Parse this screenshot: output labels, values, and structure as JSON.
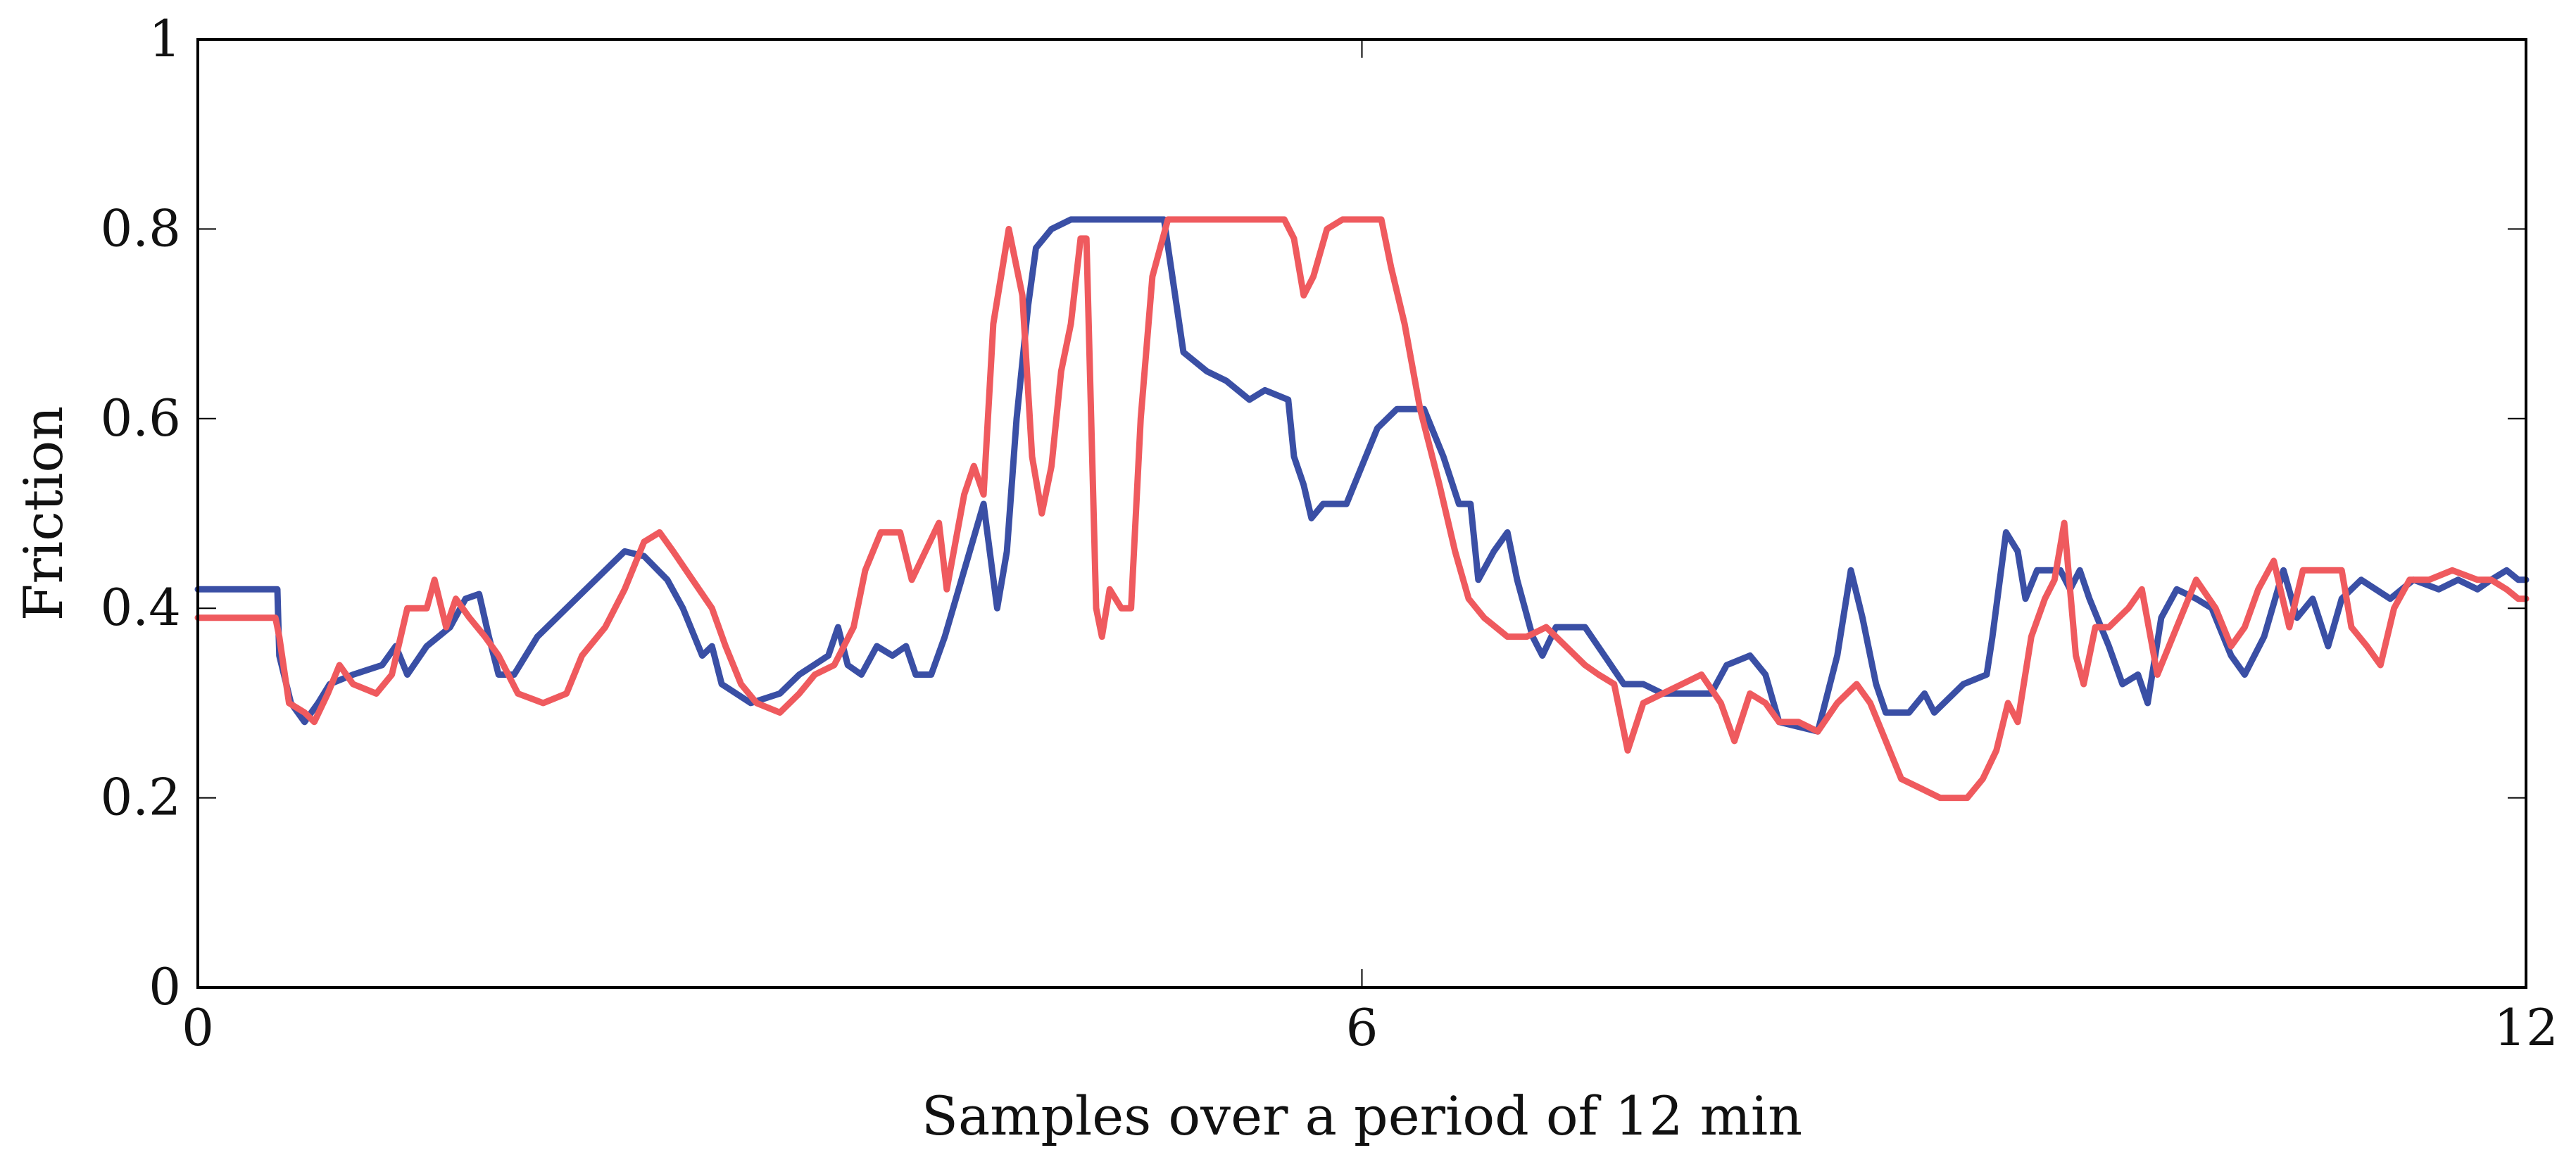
{
  "chart_data": {
    "type": "line",
    "title": "",
    "xlabel": "Samples over a period of 12 min",
    "ylabel": "Friction",
    "xlim": [
      0,
      12
    ],
    "ylim": [
      0,
      1
    ],
    "xticks": [
      0,
      6,
      12
    ],
    "xtick_labels": [
      "0",
      "6",
      "12"
    ],
    "yticks": [
      0,
      0.2,
      0.4,
      0.6,
      0.8,
      1
    ],
    "ytick_labels": [
      "0",
      "0.2",
      "0.4",
      "0.6",
      "0.8",
      "1"
    ],
    "grid": false,
    "legend": "none",
    "series": [
      {
        "name": "blue",
        "color": "#3a4fa5",
        "points": [
          [
            0,
            0.42
          ],
          [
            0.41,
            0.42
          ],
          [
            0.42,
            0.35
          ],
          [
            0.48,
            0.3
          ],
          [
            0.55,
            0.28
          ],
          [
            0.62,
            0.3
          ],
          [
            0.68,
            0.32
          ],
          [
            0.8,
            0.33
          ],
          [
            0.95,
            0.34
          ],
          [
            1.02,
            0.36
          ],
          [
            1.08,
            0.33
          ],
          [
            1.18,
            0.36
          ],
          [
            1.3,
            0.38
          ],
          [
            1.38,
            0.41
          ],
          [
            1.45,
            0.415
          ],
          [
            1.5,
            0.37
          ],
          [
            1.55,
            0.33
          ],
          [
            1.63,
            0.33
          ],
          [
            1.75,
            0.37
          ],
          [
            1.9,
            0.4
          ],
          [
            2.05,
            0.43
          ],
          [
            2.2,
            0.46
          ],
          [
            2.3,
            0.455
          ],
          [
            2.42,
            0.43
          ],
          [
            2.5,
            0.4
          ],
          [
            2.6,
            0.35
          ],
          [
            2.65,
            0.36
          ],
          [
            2.7,
            0.32
          ],
          [
            2.85,
            0.3
          ],
          [
            3.0,
            0.31
          ],
          [
            3.1,
            0.33
          ],
          [
            3.25,
            0.35
          ],
          [
            3.3,
            0.38
          ],
          [
            3.35,
            0.34
          ],
          [
            3.42,
            0.33
          ],
          [
            3.5,
            0.36
          ],
          [
            3.58,
            0.35
          ],
          [
            3.65,
            0.36
          ],
          [
            3.7,
            0.33
          ],
          [
            3.78,
            0.33
          ],
          [
            3.85,
            0.37
          ],
          [
            3.95,
            0.44
          ],
          [
            4.05,
            0.51
          ],
          [
            4.12,
            0.4
          ],
          [
            4.17,
            0.46
          ],
          [
            4.22,
            0.6
          ],
          [
            4.28,
            0.72
          ],
          [
            4.32,
            0.78
          ],
          [
            4.4,
            0.8
          ],
          [
            4.5,
            0.81
          ],
          [
            4.7,
            0.81
          ],
          [
            4.98,
            0.81
          ],
          [
            5.03,
            0.74
          ],
          [
            5.08,
            0.67
          ],
          [
            5.2,
            0.65
          ],
          [
            5.3,
            0.64
          ],
          [
            5.42,
            0.62
          ],
          [
            5.5,
            0.63
          ],
          [
            5.62,
            0.62
          ],
          [
            5.65,
            0.56
          ],
          [
            5.7,
            0.53
          ],
          [
            5.74,
            0.495
          ],
          [
            5.8,
            0.51
          ],
          [
            5.92,
            0.51
          ],
          [
            6.0,
            0.55
          ],
          [
            6.08,
            0.59
          ],
          [
            6.18,
            0.61
          ],
          [
            6.32,
            0.61
          ],
          [
            6.42,
            0.56
          ],
          [
            6.5,
            0.51
          ],
          [
            6.56,
            0.51
          ],
          [
            6.6,
            0.43
          ],
          [
            6.68,
            0.46
          ],
          [
            6.75,
            0.48
          ],
          [
            6.8,
            0.43
          ],
          [
            6.88,
            0.37
          ],
          [
            6.93,
            0.35
          ],
          [
            7.0,
            0.38
          ],
          [
            7.15,
            0.38
          ],
          [
            7.25,
            0.35
          ],
          [
            7.35,
            0.32
          ],
          [
            7.45,
            0.32
          ],
          [
            7.55,
            0.31
          ],
          [
            7.8,
            0.31
          ],
          [
            7.88,
            0.34
          ],
          [
            8.0,
            0.35
          ],
          [
            8.08,
            0.33
          ],
          [
            8.15,
            0.28
          ],
          [
            8.35,
            0.27
          ],
          [
            8.45,
            0.35
          ],
          [
            8.52,
            0.44
          ],
          [
            8.58,
            0.39
          ],
          [
            8.65,
            0.32
          ],
          [
            8.7,
            0.29
          ],
          [
            8.82,
            0.29
          ],
          [
            8.9,
            0.31
          ],
          [
            8.95,
            0.29
          ],
          [
            9.1,
            0.32
          ],
          [
            9.22,
            0.33
          ],
          [
            9.25,
            0.37
          ],
          [
            9.32,
            0.48
          ],
          [
            9.38,
            0.46
          ],
          [
            9.42,
            0.41
          ],
          [
            9.48,
            0.44
          ],
          [
            9.6,
            0.44
          ],
          [
            9.65,
            0.42
          ],
          [
            9.7,
            0.44
          ],
          [
            9.75,
            0.41
          ],
          [
            9.85,
            0.36
          ],
          [
            9.92,
            0.32
          ],
          [
            10.0,
            0.33
          ],
          [
            10.05,
            0.3
          ],
          [
            10.12,
            0.39
          ],
          [
            10.2,
            0.42
          ],
          [
            10.3,
            0.41
          ],
          [
            10.38,
            0.4
          ],
          [
            10.48,
            0.35
          ],
          [
            10.55,
            0.33
          ],
          [
            10.65,
            0.37
          ],
          [
            10.75,
            0.44
          ],
          [
            10.82,
            0.39
          ],
          [
            10.9,
            0.41
          ],
          [
            10.98,
            0.36
          ],
          [
            11.05,
            0.41
          ],
          [
            11.15,
            0.43
          ],
          [
            11.3,
            0.41
          ],
          [
            11.42,
            0.43
          ],
          [
            11.55,
            0.42
          ],
          [
            11.65,
            0.43
          ],
          [
            11.75,
            0.42
          ],
          [
            11.82,
            0.43
          ],
          [
            11.9,
            0.44
          ],
          [
            11.96,
            0.43
          ],
          [
            12.0,
            0.43
          ]
        ]
      },
      {
        "name": "red",
        "color": "#ef5a5e",
        "points": [
          [
            0,
            0.39
          ],
          [
            0.4,
            0.39
          ],
          [
            0.42,
            0.37
          ],
          [
            0.47,
            0.3
          ],
          [
            0.55,
            0.29
          ],
          [
            0.6,
            0.28
          ],
          [
            0.67,
            0.31
          ],
          [
            0.73,
            0.34
          ],
          [
            0.8,
            0.32
          ],
          [
            0.92,
            0.31
          ],
          [
            1.0,
            0.33
          ],
          [
            1.08,
            0.4
          ],
          [
            1.18,
            0.4
          ],
          [
            1.22,
            0.43
          ],
          [
            1.28,
            0.38
          ],
          [
            1.33,
            0.41
          ],
          [
            1.4,
            0.39
          ],
          [
            1.48,
            0.37
          ],
          [
            1.55,
            0.35
          ],
          [
            1.65,
            0.31
          ],
          [
            1.78,
            0.3
          ],
          [
            1.9,
            0.31
          ],
          [
            1.98,
            0.35
          ],
          [
            2.1,
            0.38
          ],
          [
            2.2,
            0.42
          ],
          [
            2.3,
            0.47
          ],
          [
            2.38,
            0.48
          ],
          [
            2.45,
            0.46
          ],
          [
            2.55,
            0.43
          ],
          [
            2.65,
            0.4
          ],
          [
            2.72,
            0.36
          ],
          [
            2.8,
            0.32
          ],
          [
            2.88,
            0.3
          ],
          [
            3.0,
            0.29
          ],
          [
            3.1,
            0.31
          ],
          [
            3.18,
            0.33
          ],
          [
            3.28,
            0.34
          ],
          [
            3.38,
            0.38
          ],
          [
            3.44,
            0.44
          ],
          [
            3.52,
            0.48
          ],
          [
            3.62,
            0.48
          ],
          [
            3.68,
            0.43
          ],
          [
            3.75,
            0.46
          ],
          [
            3.82,
            0.49
          ],
          [
            3.86,
            0.42
          ],
          [
            3.95,
            0.52
          ],
          [
            4.0,
            0.55
          ],
          [
            4.05,
            0.52
          ],
          [
            4.1,
            0.7
          ],
          [
            4.18,
            0.8
          ],
          [
            4.25,
            0.73
          ],
          [
            4.3,
            0.56
          ],
          [
            4.35,
            0.5
          ],
          [
            4.4,
            0.55
          ],
          [
            4.45,
            0.65
          ],
          [
            4.5,
            0.7
          ],
          [
            4.55,
            0.79
          ],
          [
            4.58,
            0.79
          ],
          [
            4.63,
            0.4
          ],
          [
            4.66,
            0.37
          ],
          [
            4.7,
            0.42
          ],
          [
            4.76,
            0.4
          ],
          [
            4.81,
            0.4
          ],
          [
            4.86,
            0.6
          ],
          [
            4.92,
            0.75
          ],
          [
            5.0,
            0.81
          ],
          [
            5.3,
            0.81
          ],
          [
            5.6,
            0.81
          ],
          [
            5.65,
            0.79
          ],
          [
            5.7,
            0.73
          ],
          [
            5.75,
            0.75
          ],
          [
            5.82,
            0.8
          ],
          [
            5.9,
            0.81
          ],
          [
            6.0,
            0.81
          ],
          [
            6.1,
            0.81
          ],
          [
            6.15,
            0.76
          ],
          [
            6.22,
            0.7
          ],
          [
            6.3,
            0.61
          ],
          [
            6.4,
            0.53
          ],
          [
            6.48,
            0.46
          ],
          [
            6.55,
            0.41
          ],
          [
            6.63,
            0.39
          ],
          [
            6.75,
            0.37
          ],
          [
            6.85,
            0.37
          ],
          [
            6.95,
            0.38
          ],
          [
            7.05,
            0.36
          ],
          [
            7.15,
            0.34
          ],
          [
            7.22,
            0.33
          ],
          [
            7.3,
            0.32
          ],
          [
            7.37,
            0.25
          ],
          [
            7.45,
            0.3
          ],
          [
            7.55,
            0.31
          ],
          [
            7.65,
            0.32
          ],
          [
            7.75,
            0.33
          ],
          [
            7.85,
            0.3
          ],
          [
            7.92,
            0.26
          ],
          [
            8.0,
            0.31
          ],
          [
            8.08,
            0.3
          ],
          [
            8.15,
            0.28
          ],
          [
            8.25,
            0.28
          ],
          [
            8.35,
            0.27
          ],
          [
            8.45,
            0.3
          ],
          [
            8.55,
            0.32
          ],
          [
            8.62,
            0.3
          ],
          [
            8.7,
            0.26
          ],
          [
            8.78,
            0.22
          ],
          [
            8.88,
            0.21
          ],
          [
            8.98,
            0.2
          ],
          [
            9.12,
            0.2
          ],
          [
            9.2,
            0.22
          ],
          [
            9.27,
            0.25
          ],
          [
            9.33,
            0.3
          ],
          [
            9.38,
            0.28
          ],
          [
            9.45,
            0.37
          ],
          [
            9.52,
            0.41
          ],
          [
            9.57,
            0.43
          ],
          [
            9.62,
            0.49
          ],
          [
            9.68,
            0.35
          ],
          [
            9.72,
            0.32
          ],
          [
            9.78,
            0.38
          ],
          [
            9.85,
            0.38
          ],
          [
            9.95,
            0.4
          ],
          [
            10.02,
            0.42
          ],
          [
            10.1,
            0.33
          ],
          [
            10.2,
            0.38
          ],
          [
            10.3,
            0.43
          ],
          [
            10.4,
            0.4
          ],
          [
            10.48,
            0.36
          ],
          [
            10.55,
            0.38
          ],
          [
            10.62,
            0.42
          ],
          [
            10.7,
            0.45
          ],
          [
            10.78,
            0.38
          ],
          [
            10.85,
            0.44
          ],
          [
            10.95,
            0.44
          ],
          [
            11.05,
            0.44
          ],
          [
            11.1,
            0.38
          ],
          [
            11.18,
            0.36
          ],
          [
            11.25,
            0.34
          ],
          [
            11.32,
            0.4
          ],
          [
            11.4,
            0.43
          ],
          [
            11.5,
            0.43
          ],
          [
            11.62,
            0.44
          ],
          [
            11.75,
            0.43
          ],
          [
            11.82,
            0.43
          ],
          [
            11.9,
            0.42
          ],
          [
            11.96,
            0.41
          ],
          [
            12.0,
            0.41
          ]
        ]
      }
    ]
  }
}
